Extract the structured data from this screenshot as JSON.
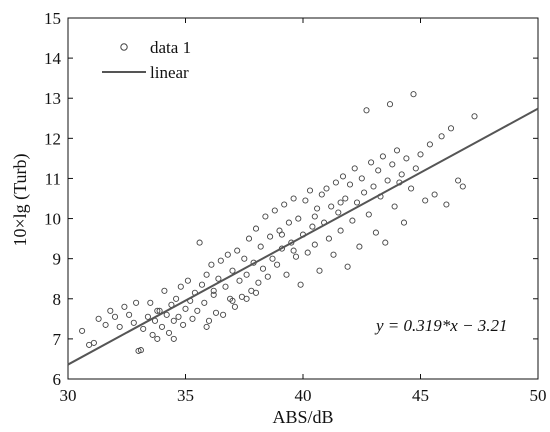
{
  "chart_data": {
    "type": "scatter",
    "xlabel": "ABS/dB",
    "ylabel": "10×lg (Turb)",
    "xlim": [
      30,
      50
    ],
    "ylim": [
      6,
      15
    ],
    "xticks": [
      "30",
      "35",
      "40",
      "45",
      "50"
    ],
    "yticks": [
      "6",
      "7",
      "8",
      "9",
      "10",
      "11",
      "12",
      "13",
      "14",
      "15"
    ],
    "grid": false,
    "legend_position": "top-left",
    "equation_label": "y = 0.319*x − 3.21",
    "colors": {
      "points": "#444444",
      "line": "#555555",
      "axes": "#111111"
    },
    "series": [
      {
        "name": "data 1",
        "marker": "open-circle",
        "points": [
          [
            30.6,
            7.2
          ],
          [
            30.9,
            6.85
          ],
          [
            31.1,
            6.9
          ],
          [
            31.3,
            7.5
          ],
          [
            31.6,
            7.35
          ],
          [
            31.8,
            7.7
          ],
          [
            32.0,
            7.55
          ],
          [
            32.2,
            7.3
          ],
          [
            32.4,
            7.8
          ],
          [
            32.6,
            7.6
          ],
          [
            32.8,
            7.4
          ],
          [
            32.9,
            7.9
          ],
          [
            33.0,
            6.7
          ],
          [
            33.1,
            6.72
          ],
          [
            33.2,
            7.25
          ],
          [
            33.4,
            7.55
          ],
          [
            33.5,
            7.9
          ],
          [
            33.6,
            7.1
          ],
          [
            33.7,
            7.45
          ],
          [
            33.8,
            7.0
          ],
          [
            33.9,
            7.7
          ],
          [
            34.0,
            7.3
          ],
          [
            34.1,
            8.2
          ],
          [
            34.2,
            7.6
          ],
          [
            34.3,
            7.15
          ],
          [
            34.4,
            7.85
          ],
          [
            34.5,
            7.45
          ],
          [
            34.6,
            8.0
          ],
          [
            34.7,
            7.55
          ],
          [
            34.8,
            8.3
          ],
          [
            34.9,
            7.35
          ],
          [
            35.0,
            7.75
          ],
          [
            35.1,
            8.45
          ],
          [
            35.2,
            7.95
          ],
          [
            35.3,
            7.5
          ],
          [
            35.4,
            8.15
          ],
          [
            35.5,
            7.7
          ],
          [
            35.6,
            9.4
          ],
          [
            35.7,
            8.35
          ],
          [
            35.8,
            7.9
          ],
          [
            35.9,
            8.6
          ],
          [
            36.0,
            7.45
          ],
          [
            36.1,
            8.85
          ],
          [
            36.2,
            8.1
          ],
          [
            36.3,
            7.65
          ],
          [
            36.4,
            8.5
          ],
          [
            36.5,
            8.95
          ],
          [
            36.6,
            7.6
          ],
          [
            36.7,
            8.3
          ],
          [
            36.8,
            9.1
          ],
          [
            36.9,
            8.0
          ],
          [
            37.0,
            8.7
          ],
          [
            37.1,
            7.8
          ],
          [
            37.2,
            9.2
          ],
          [
            37.3,
            8.45
          ],
          [
            37.4,
            8.05
          ],
          [
            37.5,
            9.0
          ],
          [
            37.6,
            8.6
          ],
          [
            37.7,
            9.5
          ],
          [
            37.8,
            8.2
          ],
          [
            37.9,
            8.9
          ],
          [
            38.0,
            9.75
          ],
          [
            38.1,
            8.4
          ],
          [
            38.2,
            9.3
          ],
          [
            38.3,
            8.75
          ],
          [
            38.4,
            10.05
          ],
          [
            38.5,
            8.55
          ],
          [
            38.6,
            9.55
          ],
          [
            38.7,
            9.0
          ],
          [
            38.8,
            10.2
          ],
          [
            38.9,
            8.85
          ],
          [
            39.0,
            9.7
          ],
          [
            39.1,
            9.25
          ],
          [
            39.2,
            10.35
          ],
          [
            39.3,
            8.6
          ],
          [
            39.4,
            9.9
          ],
          [
            39.5,
            9.4
          ],
          [
            39.6,
            10.5
          ],
          [
            39.7,
            9.05
          ],
          [
            39.8,
            10.0
          ],
          [
            39.9,
            8.35
          ],
          [
            40.0,
            9.6
          ],
          [
            40.1,
            10.45
          ],
          [
            40.2,
            9.15
          ],
          [
            40.3,
            10.7
          ],
          [
            40.4,
            9.8
          ],
          [
            40.5,
            9.35
          ],
          [
            40.6,
            10.25
          ],
          [
            40.7,
            8.7
          ],
          [
            40.8,
            10.6
          ],
          [
            40.9,
            9.9
          ],
          [
            41.0,
            10.75
          ],
          [
            41.1,
            9.5
          ],
          [
            41.2,
            10.3
          ],
          [
            41.3,
            9.1
          ],
          [
            41.4,
            10.9
          ],
          [
            41.5,
            10.15
          ],
          [
            41.6,
            9.7
          ],
          [
            41.7,
            11.05
          ],
          [
            41.8,
            10.5
          ],
          [
            41.9,
            8.8
          ],
          [
            42.0,
            10.85
          ],
          [
            42.1,
            9.95
          ],
          [
            42.2,
            11.25
          ],
          [
            42.3,
            10.4
          ],
          [
            42.4,
            9.3
          ],
          [
            42.5,
            11.0
          ],
          [
            42.6,
            10.65
          ],
          [
            42.7,
            12.7
          ],
          [
            42.8,
            10.1
          ],
          [
            42.9,
            11.4
          ],
          [
            43.0,
            10.8
          ],
          [
            43.1,
            9.65
          ],
          [
            43.2,
            11.2
          ],
          [
            43.3,
            10.55
          ],
          [
            43.4,
            11.55
          ],
          [
            43.5,
            9.4
          ],
          [
            43.6,
            10.95
          ],
          [
            43.7,
            12.85
          ],
          [
            43.8,
            11.35
          ],
          [
            43.9,
            10.3
          ],
          [
            44.0,
            11.7
          ],
          [
            44.1,
            10.9
          ],
          [
            44.2,
            11.1
          ],
          [
            44.3,
            9.9
          ],
          [
            44.4,
            11.5
          ],
          [
            44.6,
            10.75
          ],
          [
            44.7,
            13.1
          ],
          [
            44.8,
            11.25
          ],
          [
            45.0,
            11.6
          ],
          [
            45.2,
            10.45
          ],
          [
            45.4,
            11.85
          ],
          [
            45.6,
            10.6
          ],
          [
            45.9,
            12.05
          ],
          [
            46.1,
            10.35
          ],
          [
            46.3,
            12.25
          ],
          [
            46.6,
            10.95
          ],
          [
            46.8,
            10.8
          ],
          [
            47.3,
            12.55
          ],
          [
            36.2,
            8.2
          ],
          [
            37.0,
            7.95
          ],
          [
            38.0,
            8.15
          ],
          [
            39.1,
            9.6
          ],
          [
            40.5,
            10.05
          ],
          [
            34.5,
            7.0
          ],
          [
            33.8,
            7.7
          ],
          [
            35.9,
            7.3
          ],
          [
            37.6,
            8.0
          ],
          [
            39.6,
            9.2
          ],
          [
            41.6,
            10.4
          ]
        ]
      },
      {
        "name": "linear",
        "type": "line",
        "slope": 0.319,
        "intercept": -3.21
      }
    ]
  }
}
